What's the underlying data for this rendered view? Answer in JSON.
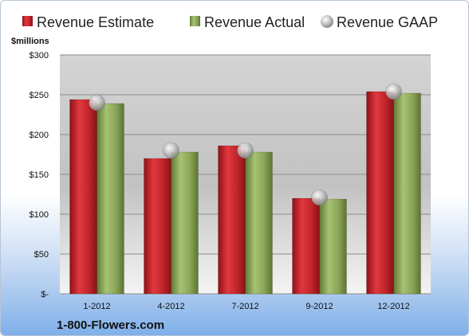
{
  "chart_data": {
    "type": "bar",
    "unit_label": "$millions",
    "categories": [
      "1-2012",
      "4-2012",
      "7-2012",
      "9-2012",
      "12-2012"
    ],
    "series": [
      {
        "name": "Revenue Estimate",
        "kind": "bar",
        "color": "#c0252b",
        "values": [
          244,
          170,
          186,
          120,
          254
        ]
      },
      {
        "name": "Revenue Actual",
        "kind": "bar",
        "color": "#8aa558",
        "values": [
          239,
          178,
          178,
          119,
          252
        ]
      },
      {
        "name": "Revenue GAAP",
        "kind": "marker",
        "color": "#b8b8b8",
        "values": [
          240,
          180,
          180,
          121,
          254
        ]
      }
    ],
    "ylim": [
      0,
      300
    ],
    "yticks": [
      0,
      50,
      100,
      150,
      200,
      250,
      300
    ],
    "ytick_labels": [
      "$-",
      "$50",
      "$100",
      "$150",
      "$200",
      "$250",
      "$300"
    ],
    "grid": true,
    "legend_position": "top",
    "footer": "1-800-Flowers.com"
  }
}
